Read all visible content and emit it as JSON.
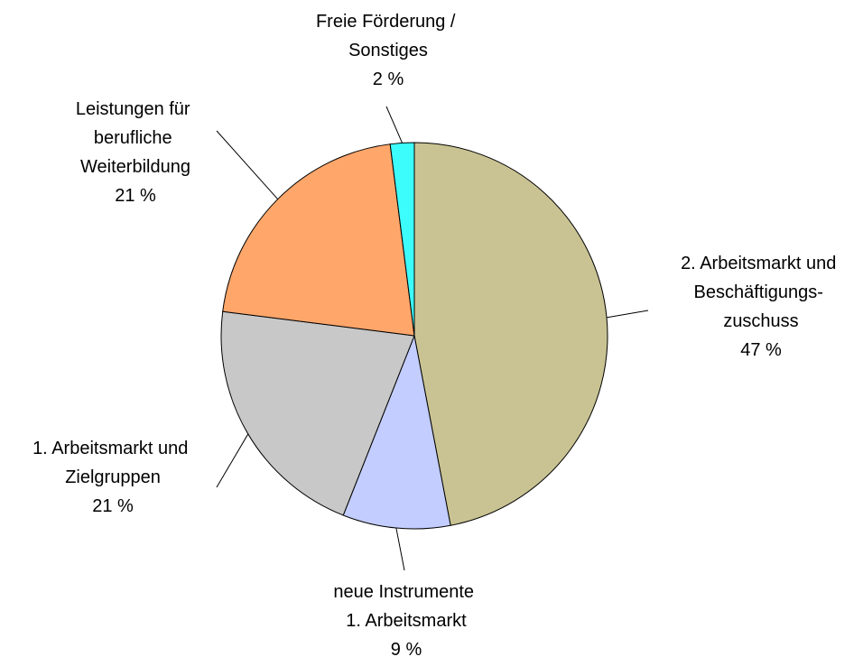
{
  "chart_data": {
    "type": "pie",
    "categories": [
      "2. Arbeitsmarkt und\nBeschäftigungs-\nzuschuss",
      "neue Instrumente\n1. Arbeitsmarkt",
      "1. Arbeitsmarkt und\nZielgruppen",
      "Leistungen für\nberufliche\nWeiterbildung",
      "Freie Förderung /\nSonstiges"
    ],
    "values": [
      47,
      9,
      21,
      21,
      2
    ],
    "value_labels": [
      "47 %",
      "9 %",
      "21 %",
      "21 %",
      "2 %"
    ],
    "colors": [
      "#c9c393",
      "#c3cdff",
      "#c8c8c8",
      "#ffa66b",
      "#3dfcfc"
    ]
  }
}
